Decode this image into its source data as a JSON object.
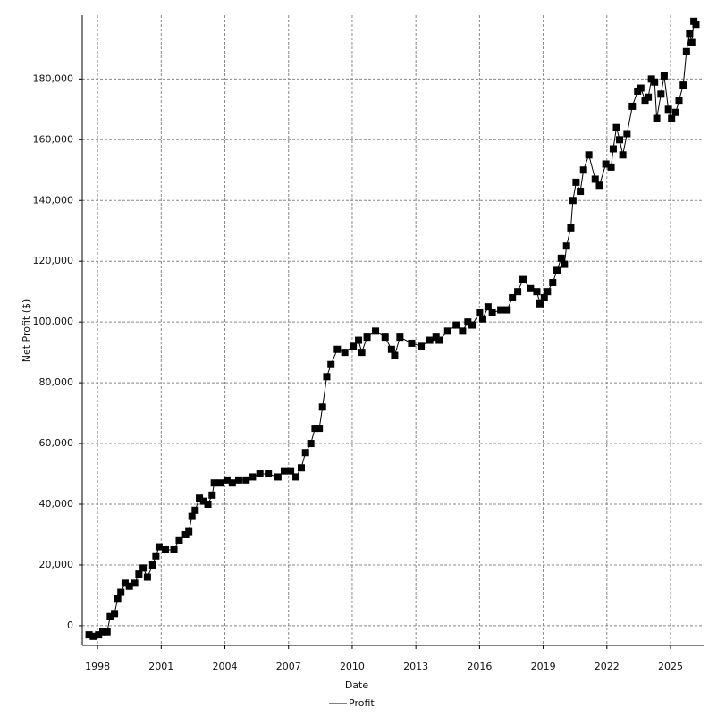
{
  "chart_data": {
    "type": "line",
    "x_label": "Date",
    "y_label": "Net Profit ($)",
    "x": [
      1997.6,
      1997.8,
      1998.05,
      1998.25,
      1998.45,
      1998.6,
      1998.8,
      1998.95,
      1999.1,
      1999.3,
      1999.5,
      1999.75,
      1999.95,
      2000.15,
      2000.35,
      2000.6,
      2000.75,
      2000.9,
      2001.2,
      2001.6,
      2001.85,
      2002.15,
      2002.3,
      2002.45,
      2002.6,
      2002.8,
      2003.0,
      2003.2,
      2003.4,
      2003.5,
      2003.8,
      2004.1,
      2004.35,
      2004.65,
      2005.0,
      2005.3,
      2005.65,
      2006.05,
      2006.5,
      2006.8,
      2007.1,
      2007.35,
      2007.6,
      2007.8,
      2008.05,
      2008.25,
      2008.45,
      2008.6,
      2008.8,
      2009.0,
      2009.3,
      2009.65,
      2010.05,
      2010.3,
      2010.45,
      2010.7,
      2011.1,
      2011.55,
      2011.85,
      2012.0,
      2012.25,
      2012.8,
      2013.25,
      2013.65,
      2013.95,
      2014.1,
      2014.5,
      2014.9,
      2015.2,
      2015.45,
      2015.65,
      2016.0,
      2016.15,
      2016.4,
      2016.6,
      2017.0,
      2017.3,
      2017.55,
      2017.8,
      2018.05,
      2018.4,
      2018.7,
      2018.85,
      2019.05,
      2019.2,
      2019.45,
      2019.65,
      2019.85,
      2020.0,
      2020.1,
      2020.3,
      2020.4,
      2020.55,
      2020.75,
      2020.9,
      2021.15,
      2021.45,
      2021.65,
      2021.95,
      2022.2,
      2022.3,
      2022.45,
      2022.6,
      2022.75,
      2022.95,
      2023.2,
      2023.45,
      2023.6,
      2023.8,
      2023.95,
      2024.1,
      2024.25,
      2024.35,
      2024.55,
      2024.7,
      2024.9,
      2025.05,
      2025.25,
      2025.4,
      2025.6,
      2025.75,
      2025.9,
      2026.0,
      2026.1,
      2026.2
    ],
    "series": [
      {
        "name": "Profit",
        "color": "#000000",
        "values": [
          -3000,
          -3500,
          -3000,
          -2000,
          -2000,
          3000,
          4000,
          9000,
          11000,
          14000,
          13000,
          14000,
          17000,
          19000,
          16000,
          20000,
          23000,
          26000,
          25000,
          25000,
          28000,
          30000,
          31000,
          36000,
          38000,
          42000,
          41000,
          40000,
          43000,
          47000,
          47000,
          48000,
          47000,
          48000,
          48000,
          49000,
          50000,
          50000,
          49000,
          51000,
          51000,
          49000,
          52000,
          57000,
          60000,
          65000,
          65000,
          72000,
          82000,
          86000,
          91000,
          90000,
          92000,
          94000,
          90000,
          95000,
          97000,
          95000,
          91000,
          89000,
          95000,
          93000,
          92000,
          94000,
          95000,
          94000,
          97000,
          99000,
          97000,
          100000,
          99000,
          103000,
          101000,
          105000,
          103000,
          104000,
          104000,
          108000,
          110000,
          114000,
          111000,
          110000,
          106000,
          108000,
          110000,
          113000,
          117000,
          121000,
          119000,
          125000,
          131000,
          140000,
          146000,
          143000,
          150000,
          155000,
          147000,
          145000,
          152000,
          151000,
          157000,
          164000,
          160000,
          155000,
          162000,
          171000,
          176000,
          177000,
          173000,
          174000,
          180000,
          179000,
          167000,
          175000,
          181000,
          170000,
          167000,
          169000,
          173000,
          178000,
          189000,
          195000,
          192000,
          199000,
          198000
        ]
      }
    ],
    "xlim": [
      1997.28,
      2026.6
    ],
    "ylim": [
      -6500,
      201000
    ],
    "xticks": [
      1998,
      2001,
      2004,
      2007,
      2010,
      2013,
      2016,
      2019,
      2022,
      2025
    ],
    "yticks": [
      0,
      {
        "value": 20000,
        "label": "20,000"
      },
      {
        "value": 40000,
        "label": "40,000"
      },
      {
        "value": 60000,
        "label": "60,000"
      },
      {
        "value": 80000,
        "label": "80,000"
      },
      {
        "value": 100000,
        "label": "100,000"
      },
      {
        "value": 120000,
        "label": "120,000"
      },
      {
        "value": 140000,
        "label": "140,000"
      },
      {
        "value": 160000,
        "label": "160,000"
      },
      {
        "value": 180000,
        "label": "180,000"
      }
    ],
    "grid": true,
    "markers": true,
    "legend": "bottom"
  }
}
